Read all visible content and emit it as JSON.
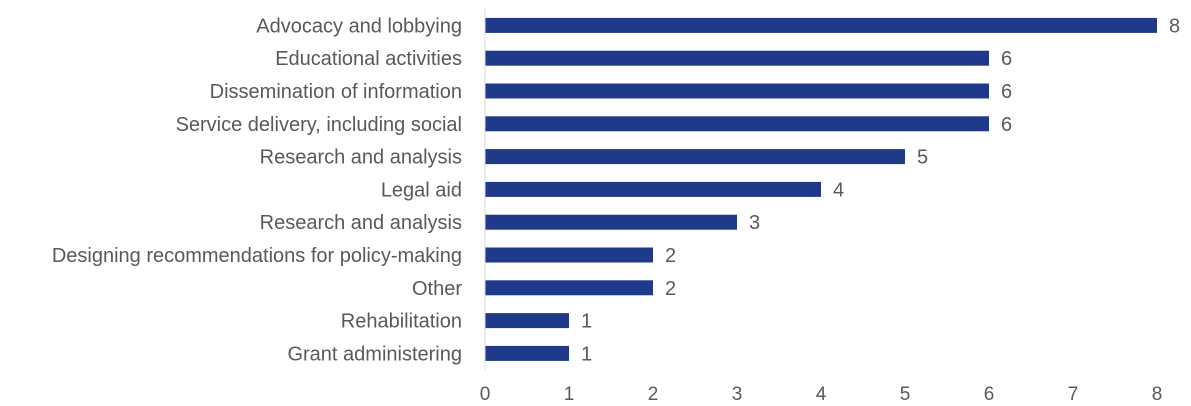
{
  "chart_data": {
    "type": "bar",
    "orientation": "horizontal",
    "categories": [
      "Advocacy and lobbying",
      "Educational activities",
      "Dissemination of information",
      "Service delivery, including social",
      "Research and analysis",
      "Legal aid",
      "Research and analysis",
      "Designing recommendations for policy-making",
      "Other",
      "Rehabilitation",
      "Grant administering"
    ],
    "values": [
      8,
      6,
      6,
      6,
      5,
      4,
      3,
      2,
      2,
      1,
      1
    ],
    "xlim": [
      0,
      8
    ],
    "x_ticks": [
      0,
      1,
      2,
      3,
      4,
      5,
      6,
      7,
      8
    ],
    "bar_color": "#1f3a8a",
    "grid": false,
    "legend": "none",
    "data_labels": true
  }
}
